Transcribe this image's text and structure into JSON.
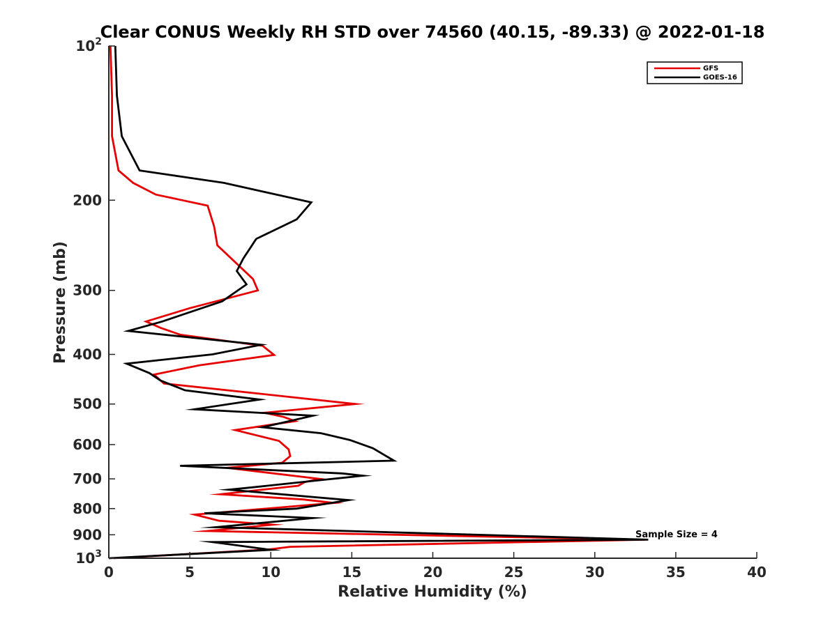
{
  "chart_data": {
    "type": "line",
    "title": "Clear CONUS Weekly RH STD over 74560 (40.15, -89.33) @ 2022-01-18",
    "xlabel": "Relative Humidity (%)",
    "ylabel": "Pressure (mb)",
    "xlim": [
      0,
      40
    ],
    "ylim": [
      100,
      1000
    ],
    "y_scale": "log",
    "y_reversed": true,
    "x_ticks": [
      "0",
      "5",
      "10",
      "15",
      "20",
      "25",
      "30",
      "35",
      "40"
    ],
    "y_ticks": [
      {
        "value": 100,
        "base": "10",
        "exp": "2"
      },
      {
        "value": 200,
        "label": "200"
      },
      {
        "value": 300,
        "label": "300"
      },
      {
        "value": 400,
        "label": "400"
      },
      {
        "value": 500,
        "label": "500"
      },
      {
        "value": 600,
        "label": "600"
      },
      {
        "value": 700,
        "label": "700"
      },
      {
        "value": 800,
        "label": "800"
      },
      {
        "value": 900,
        "label": "900"
      },
      {
        "value": 1000,
        "base": "10",
        "exp": "3"
      }
    ],
    "grid": false,
    "legend_position": "top-right",
    "annotation": "Sample Size = 4",
    "series": [
      {
        "name": "GFS",
        "color": "#e60000",
        "points": [
          [
            0.1,
            100
          ],
          [
            0.2,
            125
          ],
          [
            0.2,
            150
          ],
          [
            0.6,
            175
          ],
          [
            1.5,
            185
          ],
          [
            2.9,
            195
          ],
          [
            6.1,
            205
          ],
          [
            6.5,
            225
          ],
          [
            6.7,
            245
          ],
          [
            8.9,
            285
          ],
          [
            9.2,
            300
          ],
          [
            5.0,
            325
          ],
          [
            2.3,
            345
          ],
          [
            3.2,
            355
          ],
          [
            4.4,
            366
          ],
          [
            9.5,
            385
          ],
          [
            10.2,
            401
          ],
          [
            5.6,
            420
          ],
          [
            2.8,
            438
          ],
          [
            3.4,
            456
          ],
          [
            9.5,
            478
          ],
          [
            15.2,
            500
          ],
          [
            9.6,
            520
          ],
          [
            10.8,
            530
          ],
          [
            11.5,
            540
          ],
          [
            7.8,
            562
          ],
          [
            10.5,
            590
          ],
          [
            11.1,
            613
          ],
          [
            11.2,
            632
          ],
          [
            10.7,
            651
          ],
          [
            7.3,
            666
          ],
          [
            13.0,
            700
          ],
          [
            12.1,
            710
          ],
          [
            11.7,
            722
          ],
          [
            6.9,
            750
          ],
          [
            12.0,
            768
          ],
          [
            13.9,
            780
          ],
          [
            5.3,
            822
          ],
          [
            6.8,
            845
          ],
          [
            10.1,
            860
          ],
          [
            6.1,
            885
          ],
          [
            33.1,
            920
          ],
          [
            11.2,
            950
          ],
          [
            9.8,
            962
          ],
          [
            0.3,
            1000
          ]
        ]
      },
      {
        "name": "GOES-16",
        "color": "#000000",
        "points": [
          [
            0.4,
            100
          ],
          [
            0.5,
            125
          ],
          [
            0.8,
            150
          ],
          [
            1.9,
            175
          ],
          [
            7.1,
            185
          ],
          [
            12.5,
            202
          ],
          [
            11.6,
            218
          ],
          [
            9.1,
            238
          ],
          [
            8.3,
            260
          ],
          [
            7.9,
            275
          ],
          [
            8.5,
            292
          ],
          [
            7.0,
            315
          ],
          [
            3.3,
            345
          ],
          [
            1.2,
            360
          ],
          [
            9.4,
            383
          ],
          [
            6.4,
            400
          ],
          [
            1.1,
            417
          ],
          [
            2.5,
            435
          ],
          [
            3.2,
            450
          ],
          [
            4.7,
            470
          ],
          [
            9.3,
            490
          ],
          [
            5.3,
            512
          ],
          [
            12.6,
            527
          ],
          [
            9.5,
            555
          ],
          [
            13.1,
            570
          ],
          [
            14.9,
            588
          ],
          [
            16.3,
            610
          ],
          [
            17.6,
            645
          ],
          [
            4.4,
            660
          ],
          [
            14.4,
            683
          ],
          [
            15.7,
            690
          ],
          [
            13.4,
            702
          ],
          [
            8.7,
            728
          ],
          [
            7.4,
            735
          ],
          [
            14.8,
            770
          ],
          [
            11.6,
            800
          ],
          [
            5.9,
            817
          ],
          [
            12.6,
            835
          ],
          [
            6.6,
            870
          ],
          [
            33.3,
            920
          ],
          [
            6.4,
            930
          ],
          [
            8.4,
            948
          ],
          [
            10.0,
            963
          ],
          [
            0.0,
            1000
          ]
        ]
      }
    ]
  }
}
